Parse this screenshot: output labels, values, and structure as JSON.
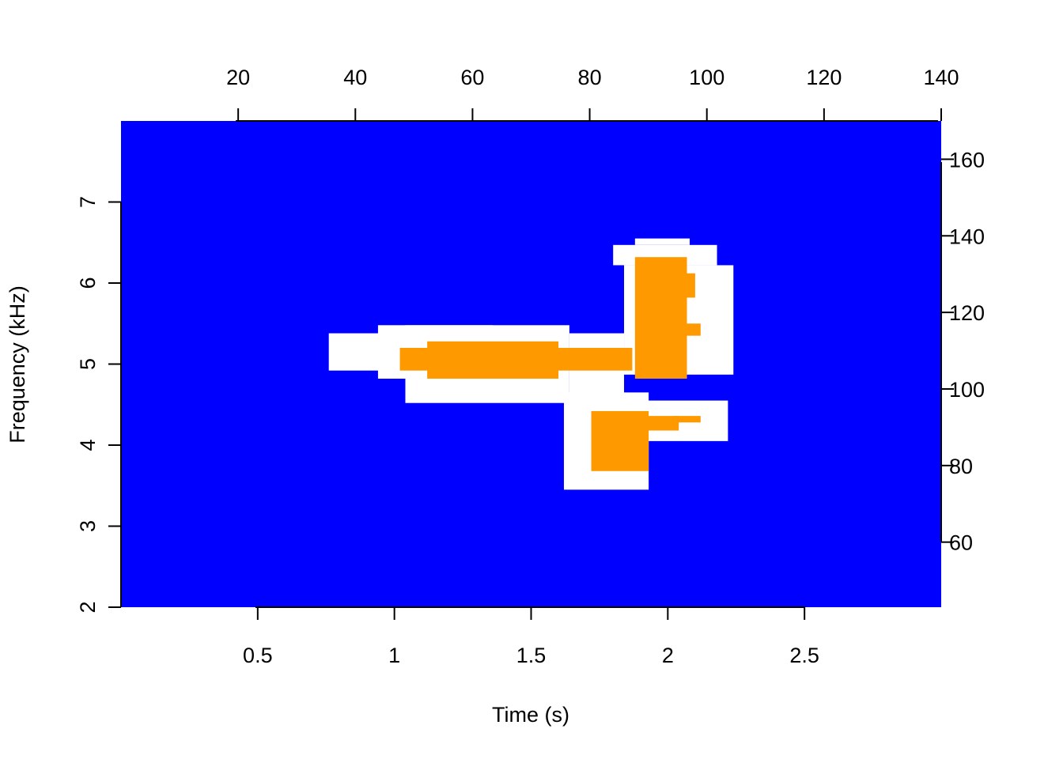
{
  "chart_data": {
    "type": "heatmap",
    "title": "",
    "xlabel": "Time (s)",
    "ylabel": "Frequency (kHz)",
    "xlim": [
      0,
      3
    ],
    "ylim": [
      2,
      8
    ],
    "x_ticks": [
      0.5,
      1,
      1.5,
      2,
      2.5
    ],
    "x_tick_labels": [
      "0.5",
      "1",
      "1.5",
      "2",
      "2.5"
    ],
    "y_ticks": [
      2,
      3,
      4,
      5,
      6,
      7
    ],
    "y_tick_labels": [
      "2",
      "3",
      "4",
      "5",
      "6",
      "7"
    ],
    "top_axis": {
      "range": [
        0,
        140
      ],
      "ticks": [
        20,
        40,
        60,
        80,
        100,
        120,
        140
      ],
      "tick_labels": [
        "20",
        "40",
        "60",
        "80",
        "100",
        "120",
        "140"
      ]
    },
    "right_axis": {
      "range": [
        43,
        170
      ],
      "ticks": [
        60,
        80,
        100,
        120,
        140,
        160
      ],
      "tick_labels": [
        "60",
        "80",
        "100",
        "120",
        "140",
        "160"
      ]
    },
    "colors": {
      "background": "#0000ff",
      "margin": "#ffffff",
      "detection": "#ff9900"
    },
    "regions": {
      "white_margin": [
        {
          "t": [
            0.76,
            1.36
          ],
          "f": [
            4.92,
            5.38
          ]
        },
        {
          "t": [
            0.94,
            1.36
          ],
          "f": [
            4.82,
            5.48
          ]
        },
        {
          "t": [
            1.04,
            1.64
          ],
          "f": [
            4.52,
            5.48
          ]
        },
        {
          "t": [
            1.64,
            1.84
          ],
          "f": [
            4.62,
            5.38
          ]
        },
        {
          "t": [
            1.84,
            2.24
          ],
          "f": [
            4.87,
            6.22
          ]
        },
        {
          "t": [
            1.8,
            2.18
          ],
          "f": [
            6.22,
            6.47
          ]
        },
        {
          "t": [
            1.88,
            2.08
          ],
          "f": [
            6.47,
            6.55
          ]
        },
        {
          "t": [
            1.62,
            1.93
          ],
          "f": [
            3.45,
            4.65
          ]
        },
        {
          "t": [
            1.84,
            2.22
          ],
          "f": [
            4.05,
            4.55
          ]
        }
      ],
      "detection": [
        {
          "t": [
            1.02,
            1.87
          ],
          "f": [
            4.92,
            5.2
          ]
        },
        {
          "t": [
            1.12,
            1.6
          ],
          "f": [
            4.82,
            5.28
          ]
        },
        {
          "t": [
            1.88,
            2.07
          ],
          "f": [
            4.82,
            6.32
          ]
        },
        {
          "t": [
            2.0,
            2.1
          ],
          "f": [
            5.82,
            6.12
          ]
        },
        {
          "t": [
            2.04,
            2.12
          ],
          "f": [
            5.35,
            5.5
          ]
        },
        {
          "t": [
            1.72,
            1.93
          ],
          "f": [
            3.68,
            4.42
          ]
        },
        {
          "t": [
            1.88,
            2.04
          ],
          "f": [
            4.18,
            4.36
          ]
        },
        {
          "t": [
            2.02,
            2.12
          ],
          "f": [
            4.28,
            4.36
          ]
        }
      ]
    }
  }
}
